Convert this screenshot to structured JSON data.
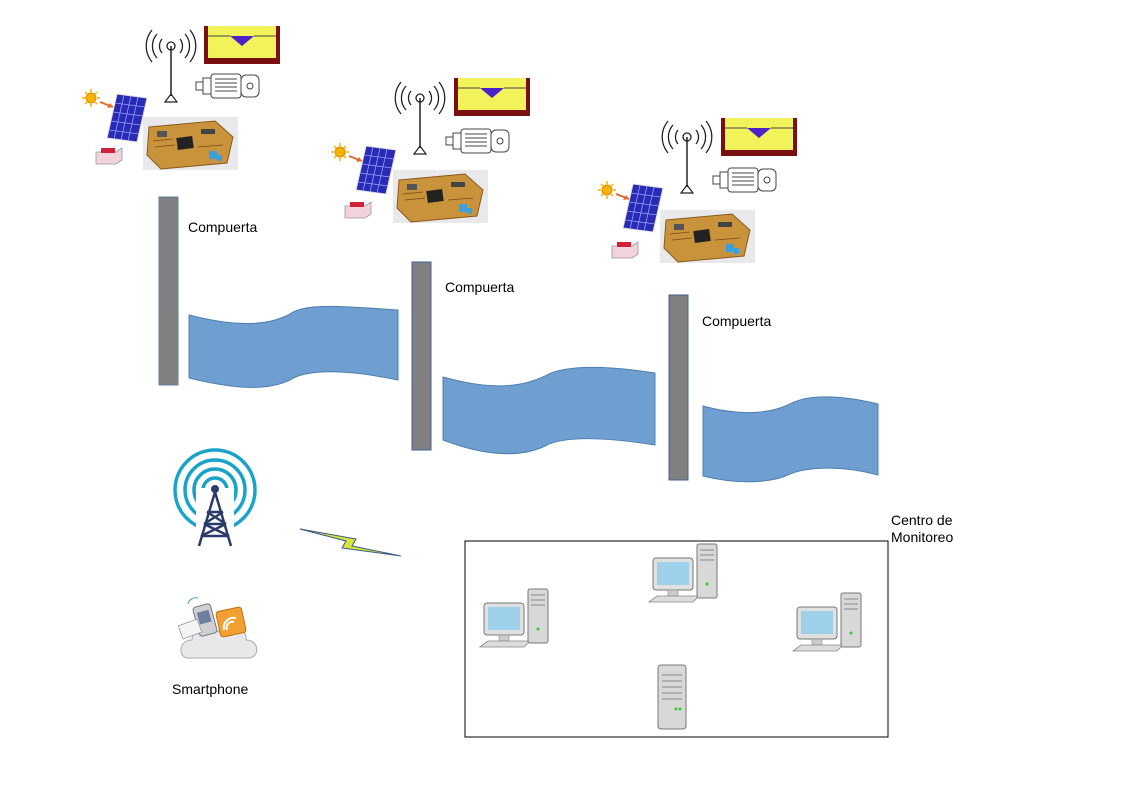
{
  "labels": {
    "gate_1": "Compuerta",
    "gate_2": "Compuerta",
    "gate_3": "Compuerta",
    "smartphone": "Smartphone",
    "monitoring_center_line1": "Centro de",
    "monitoring_center_line2": "Monitoreo"
  },
  "icons": {
    "antenna": "radio-antenna-icon",
    "tank": "water-tank-level-icon",
    "motor": "electric-motor-icon",
    "sun": "sun-icon",
    "solar_panel": "solar-panel-icon",
    "battery": "battery-icon",
    "board": "microcontroller-board-icon",
    "tower": "radio-tower-icon",
    "link": "wireless-link-icon",
    "phone": "smartphone-cloud-icon",
    "pc": "desktop-computer-icon",
    "server": "server-icon"
  },
  "colors": {
    "water": "#6f9fd0",
    "gate": "#808080",
    "tank_water": "#f2f25a",
    "tank_frame": "#7a0f0f",
    "tank_level": "#4b22c8",
    "tower": "#1aa3c8",
    "solar_panel": "#2a2ab5",
    "board": "#c8933a"
  }
}
